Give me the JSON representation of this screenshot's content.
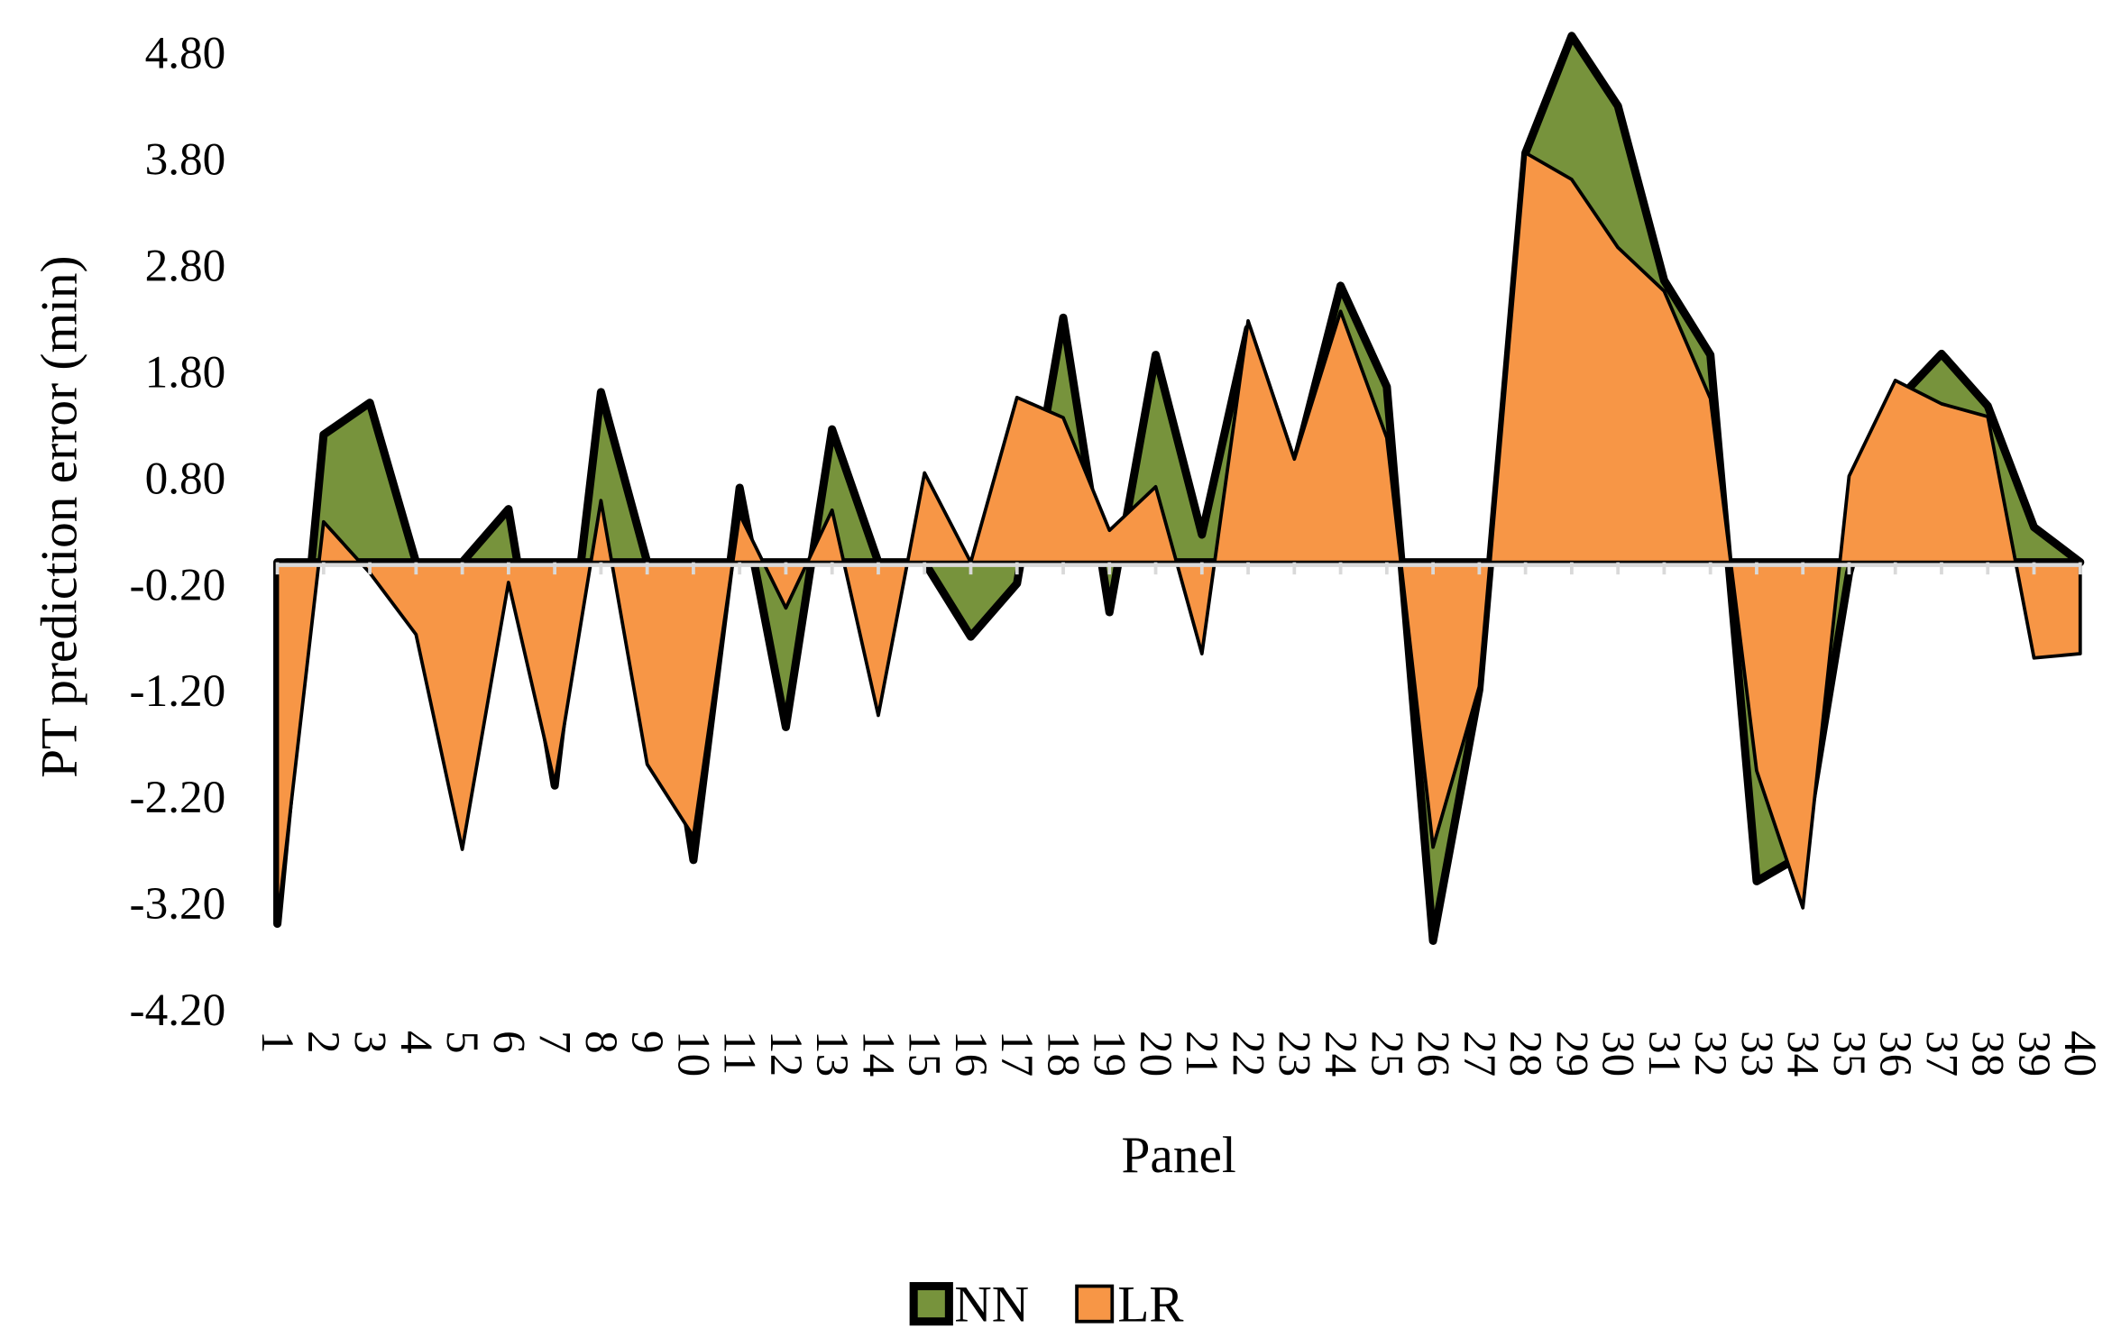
{
  "chart_data": {
    "type": "area",
    "title": "",
    "xlabel": "Panel",
    "ylabel": "PT prediction error (min)",
    "ylim": [
      -4.2,
      4.8
    ],
    "yticks": [
      "4.80",
      "3.80",
      "2.80",
      "1.80",
      "0.80",
      "-0.20",
      "-1.20",
      "-2.20",
      "-3.20",
      "-4.20"
    ],
    "ytick_values": [
      4.8,
      3.8,
      2.8,
      1.8,
      0.8,
      -0.2,
      -1.2,
      -2.2,
      -3.2,
      -4.2
    ],
    "categories": [
      "1",
      "2",
      "3",
      "4",
      "5",
      "6",
      "7",
      "8",
      "9",
      "10",
      "11",
      "12",
      "13",
      "14",
      "15",
      "16",
      "17",
      "18",
      "19",
      "20",
      "21",
      "22",
      "23",
      "24",
      "25",
      "26",
      "27",
      "28",
      "29",
      "30",
      "31",
      "32",
      "33",
      "34",
      "35",
      "36",
      "37",
      "38",
      "39",
      "40"
    ],
    "grid": false,
    "legend_position": "bottom",
    "series": [
      {
        "name": "NN",
        "color": "#77933C",
        "values": [
          -3.4,
          1.2,
          1.5,
          0,
          0,
          0.5,
          -2.1,
          1.6,
          0,
          -2.8,
          0.7,
          -1.55,
          1.25,
          0,
          0,
          -0.7,
          -0.2,
          2.3,
          -0.47,
          1.95,
          0.26,
          2.2,
          0.9,
          2.6,
          1.65,
          -3.56,
          -1.2,
          3.85,
          4.95,
          4.29,
          2.65,
          1.95,
          -3.0,
          -2.75,
          -0.1,
          1.5,
          1.96,
          1.47,
          0.33,
          0
        ]
      },
      {
        "name": "LR",
        "color": "#F79646",
        "values": [
          -3.4,
          0.38,
          -0.1,
          -0.68,
          -2.7,
          -0.19,
          -2.08,
          0.58,
          -1.9,
          -2.58,
          0.45,
          -0.43,
          0.49,
          -1.44,
          0.84,
          0,
          1.55,
          1.36,
          0.3,
          0.71,
          -0.86,
          2.27,
          0.97,
          2.36,
          1.17,
          -2.68,
          -1.17,
          3.85,
          3.6,
          2.96,
          2.55,
          1.54,
          -1.96,
          -3.25,
          0.81,
          1.71,
          1.49,
          1.37,
          -0.9,
          -0.86
        ]
      }
    ]
  }
}
